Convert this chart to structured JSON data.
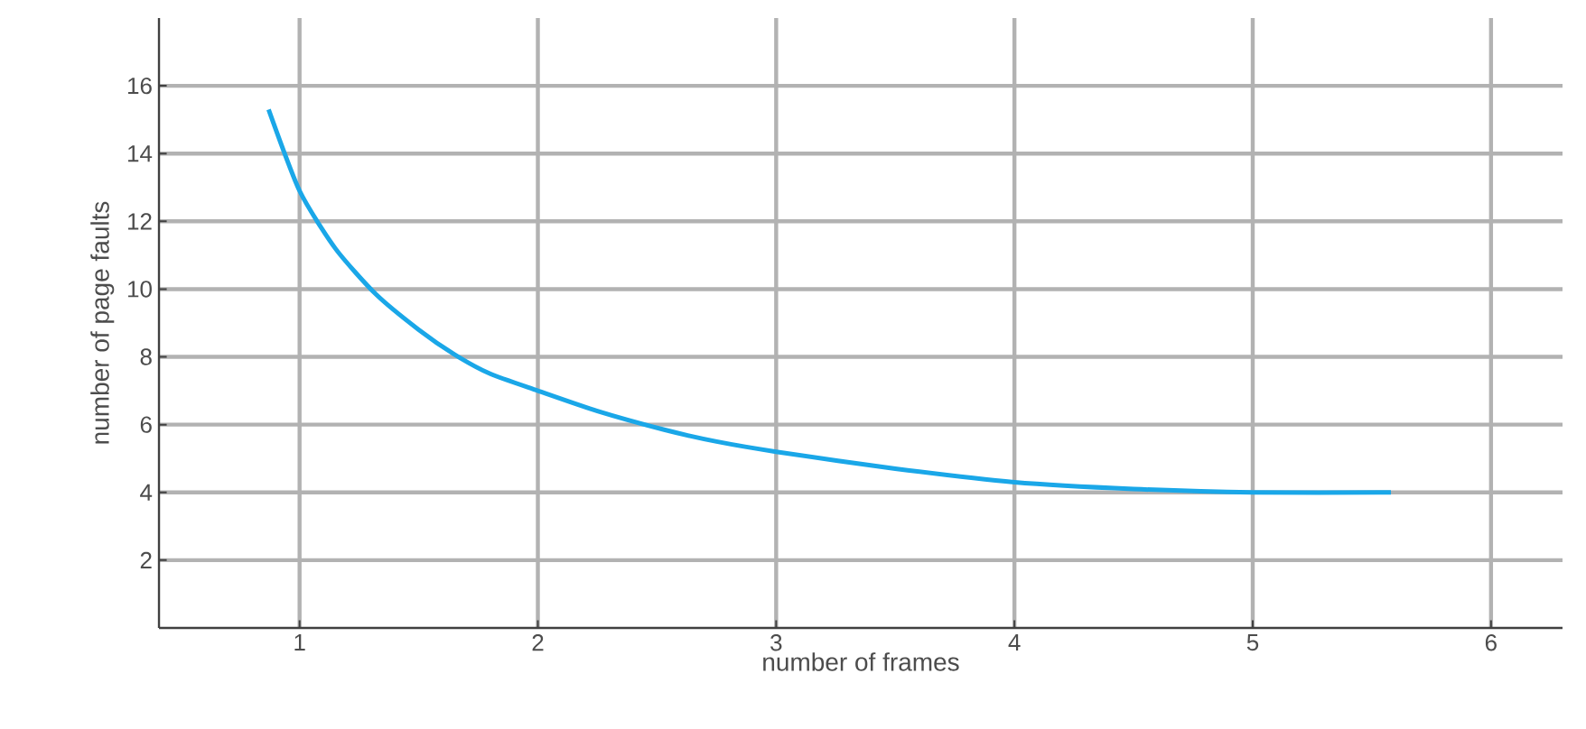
{
  "chart_data": {
    "type": "line",
    "xlabel": "number of frames",
    "ylabel": "number of page faults",
    "x": [
      0.87,
      1.0,
      1.15,
      1.32,
      1.5,
      1.65,
      1.8,
      2.0,
      2.25,
      2.53,
      2.75,
      3.0,
      3.5,
      4.0,
      4.5,
      5.0,
      5.58
    ],
    "series": [
      {
        "color": "#1aa7e8",
        "values": [
          15.3,
          12.9,
          11.2,
          9.85,
          8.8,
          8.07,
          7.5,
          7.0,
          6.4,
          5.85,
          5.5,
          5.2,
          4.7,
          4.3,
          4.1,
          4.0,
          4.0
        ]
      }
    ],
    "xlim": [
      0.41,
      6.3
    ],
    "ylim": [
      0,
      18
    ],
    "xticks": [
      1,
      2,
      3,
      4,
      5,
      6
    ],
    "yticks": [
      2,
      4,
      6,
      8,
      10,
      12,
      14,
      16
    ],
    "grid": true,
    "marker": "none",
    "line_style": "solid"
  }
}
